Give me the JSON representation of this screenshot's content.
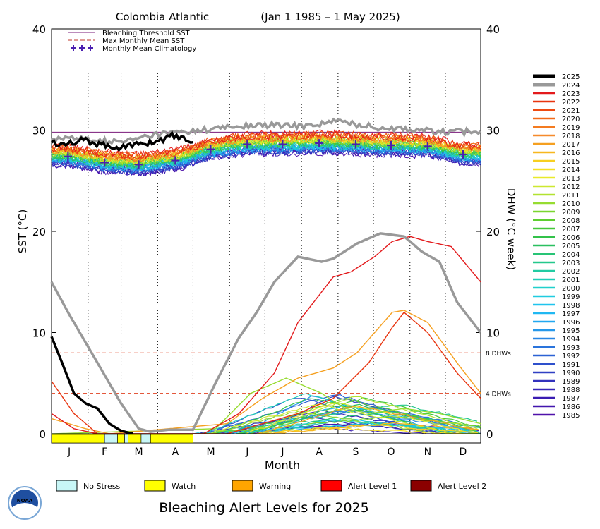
{
  "chart_data": {
    "type": "line",
    "title": "Colombia Atlantic",
    "period": "(Jan 1 1985 – 1 May 2025)",
    "xlabel": "Month",
    "ylabel_left": "SST (°C)",
    "ylabel_right": "DHW (°C week)",
    "ylim": [
      0,
      40
    ],
    "yticks": [
      "0",
      "10",
      "20",
      "30",
      "40"
    ],
    "xlim": [
      1,
      365
    ],
    "month_labels": [
      "J",
      "F",
      "M",
      "A",
      "M",
      "J",
      "J",
      "A",
      "S",
      "O",
      "N",
      "D"
    ],
    "bleaching_threshold_sst": 29.8,
    "dhw_reference_lines": [
      {
        "value": 8,
        "label": "8 DHWs"
      },
      {
        "value": 4,
        "label": "4 DHWs"
      }
    ],
    "inner_legend": [
      {
        "label": "Bleaching Threshold SST",
        "color": "#7a1a7a",
        "style": "solid"
      },
      {
        "label": "Max Monthly Mean SST",
        "color": "#c0392b",
        "style": "dashed"
      },
      {
        "label": "Monthly Mean Climatology",
        "color": "#4b1fb0",
        "style": "plus"
      }
    ],
    "climatology": {
      "day": [
        15,
        46,
        75,
        106,
        136,
        167,
        197,
        228,
        259,
        289,
        320,
        350
      ],
      "sst": [
        27.4,
        26.8,
        26.6,
        27.0,
        28.1,
        28.6,
        28.6,
        28.7,
        28.6,
        28.5,
        28.4,
        27.6
      ]
    },
    "years": [
      "2025",
      "2024",
      "2023",
      "2022",
      "2021",
      "2020",
      "2019",
      "2018",
      "2017",
      "2016",
      "2015",
      "2014",
      "2013",
      "2012",
      "2011",
      "2010",
      "2009",
      "2008",
      "2007",
      "2006",
      "2005",
      "2004",
      "2003",
      "2002",
      "2001",
      "2000",
      "1999",
      "1998",
      "1997",
      "1996",
      "1995",
      "1994",
      "1993",
      "1992",
      "1991",
      "1990",
      "1989",
      "1988",
      "1987",
      "1986",
      "1985"
    ],
    "year_colors": [
      "#000000",
      "#999999",
      "#e31a1c",
      "#e8340f",
      "#ee4b12",
      "#f26a1a",
      "#f47b20",
      "#f68a2c",
      "#f5a020",
      "#f7b71e",
      "#f7cf20",
      "#f5e024",
      "#e9ea2a",
      "#cde830",
      "#b2e230",
      "#96dc30",
      "#7ad630",
      "#5ecf30",
      "#44c83a",
      "#33c24a",
      "#2bc060",
      "#28c476",
      "#24c88c",
      "#22cba2",
      "#20ceb8",
      "#20d0cc",
      "#20cce0",
      "#20c4ee",
      "#20b8f2",
      "#22a8f0",
      "#2698ea",
      "#2886e4",
      "#2a74dc",
      "#2c62d4",
      "#2e50cc",
      "#3040c4",
      "#3232bc",
      "#3626b8",
      "#3a1cb2",
      "#4216ae",
      "#5012aa"
    ],
    "series": [
      {
        "name": "2025",
        "type": "sst",
        "day": [
          1,
          15,
          30,
          45,
          60,
          75,
          90,
          105,
          121
        ],
        "values": [
          28.7,
          28.8,
          29.0,
          28.5,
          28.3,
          28.6,
          28.9,
          29.5,
          28.8
        ]
      },
      {
        "name": "2024",
        "type": "sst",
        "day": [
          1,
          30,
          60,
          90,
          121,
          152,
          182,
          213,
          244,
          274,
          305,
          335,
          365
        ],
        "values": [
          29.3,
          29.1,
          28.8,
          29.6,
          29.9,
          30.3,
          30.5,
          30.4,
          30.9,
          30.3,
          30.1,
          29.8,
          29.9
        ]
      },
      {
        "name": "2025",
        "type": "dhw",
        "day": [
          1,
          10,
          20,
          30,
          40,
          50,
          60,
          70
        ],
        "values": [
          9.6,
          7.0,
          4.0,
          3.0,
          2.5,
          1.0,
          0.3,
          0
        ]
      },
      {
        "name": "2024",
        "type": "dhw",
        "day": [
          1,
          15,
          30,
          45,
          60,
          75,
          85,
          100,
          121,
          140,
          160,
          175,
          190,
          210,
          230,
          240,
          260,
          280,
          300,
          315,
          330,
          345,
          365
        ],
        "values": [
          15.0,
          12.0,
          9.0,
          6.0,
          3.0,
          0.5,
          0.2,
          0.4,
          0.4,
          5.0,
          9.5,
          12.0,
          15.0,
          17.5,
          17.0,
          17.3,
          18.8,
          19.8,
          19.5,
          18.0,
          17.0,
          13.0,
          10.0
        ]
      },
      {
        "name": "2023",
        "type": "dhw",
        "day": [
          1,
          20,
          40,
          130,
          160,
          190,
          210,
          240,
          255,
          275,
          290,
          305,
          320,
          340,
          365
        ],
        "values": [
          2.0,
          0.5,
          0,
          0,
          2.0,
          6.0,
          11.0,
          15.5,
          16.0,
          17.5,
          19.0,
          19.5,
          19.0,
          18.5,
          15.0
        ]
      },
      {
        "name": "2022",
        "type": "dhw",
        "day": [
          1,
          20,
          40,
          150,
          180,
          210,
          240,
          270,
          290,
          300,
          320,
          345,
          365
        ],
        "values": [
          5.2,
          2.0,
          0,
          0,
          1.0,
          2.0,
          3.5,
          7.0,
          10.5,
          12.0,
          10.0,
          6.0,
          3.5
        ]
      },
      {
        "name": "2017",
        "type": "dhw",
        "day": [
          1,
          30,
          50,
          150,
          180,
          210,
          240,
          260,
          275,
          290,
          300,
          320,
          345,
          365
        ],
        "values": [
          1.5,
          0.5,
          0,
          1.0,
          3.5,
          5.5,
          6.5,
          8.0,
          10.0,
          12.0,
          12.2,
          11.0,
          7.0,
          4.0
        ]
      },
      {
        "name": "2010",
        "type": "dhw",
        "day": [
          1,
          140,
          170,
          200,
          230,
          250,
          270,
          300,
          330,
          365
        ],
        "values": [
          0,
          0.5,
          4.0,
          5.5,
          4.0,
          2.5,
          2.0,
          2.5,
          2.0,
          1.0
        ]
      }
    ]
  },
  "alert_legend": [
    {
      "label": "No Stress",
      "color": "#c8f6f6"
    },
    {
      "label": "Watch",
      "color": "#ffff00"
    },
    {
      "label": "Warning",
      "color": "#ffa500"
    },
    {
      "label": "Alert Level 1",
      "color": "#ff0000"
    },
    {
      "label": "Alert Level 2",
      "color": "#8b0000"
    }
  ],
  "alert_title": "Bleaching Alert Levels for 2025",
  "alert_bar": [
    {
      "from": 1,
      "to": 46,
      "level": "Watch"
    },
    {
      "from": 46,
      "to": 57,
      "level": "No Stress"
    },
    {
      "from": 57,
      "to": 63,
      "level": "Watch"
    },
    {
      "from": 63,
      "to": 66,
      "level": "No Stress"
    },
    {
      "from": 66,
      "to": 77,
      "level": "Watch"
    },
    {
      "from": 77,
      "to": 85,
      "level": "No Stress"
    },
    {
      "from": 85,
      "to": 121,
      "level": "Watch"
    }
  ],
  "logo": {
    "text": "NOAA"
  }
}
